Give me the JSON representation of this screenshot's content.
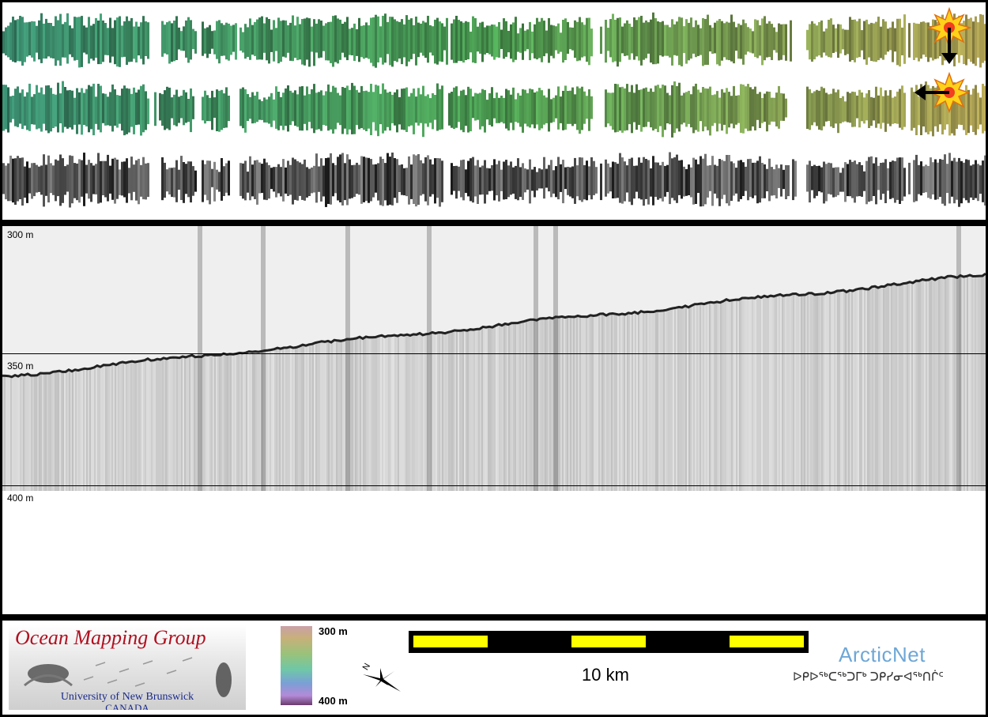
{
  "profile": {
    "depth_labels": [
      "300 m",
      "350 m",
      "400 m"
    ],
    "colors": {
      "background": "#efefef",
      "seafloor": "#222222"
    }
  },
  "strips": {
    "illumination_icons": [
      "sun-arrow-down-icon",
      "sun-arrow-left-icon"
    ],
    "colors": {
      "green_start": "#3a8a6e",
      "green_mid": "#4a9a50",
      "green_end": "#a89a50",
      "grey": "#333333"
    }
  },
  "footer": {
    "logo": {
      "title": "Ocean Mapping Group",
      "university": "University of New Brunswick",
      "country": "CANADA"
    },
    "colorbar": {
      "top_label": "300 m",
      "bottom_label": "400 m"
    },
    "scale": {
      "label": "10 km"
    },
    "arcticnet": {
      "name": "ArcticNet",
      "inuktitut": "ᐅᑭᐅᖅᑕᖅᑐᒥᒃ ᑐᑭᓯᓂᐊᖅᑎᒌᑦ"
    },
    "compass": {
      "north_letter": "N"
    }
  }
}
